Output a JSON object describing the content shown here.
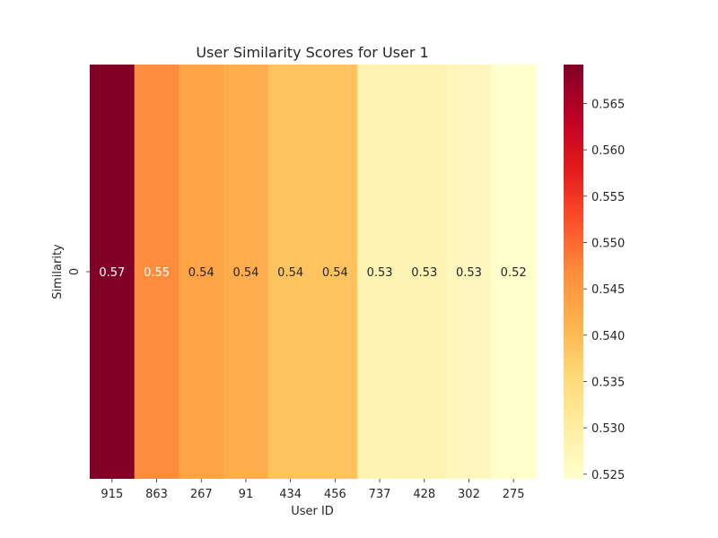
{
  "chart_data": {
    "type": "heatmap",
    "title": "User Similarity Scores for User 1",
    "xlabel": "User ID",
    "ylabel": "Similarity",
    "x_categories": [
      "915",
      "863",
      "267",
      "91",
      "434",
      "456",
      "737",
      "428",
      "302",
      "275"
    ],
    "y_categories": [
      "0"
    ],
    "values": [
      [
        0.569,
        0.551,
        0.543,
        0.542,
        0.538,
        0.538,
        0.526,
        0.526,
        0.525,
        0.524
      ]
    ],
    "annotations": [
      "0.57",
      "0.55",
      "0.54",
      "0.54",
      "0.54",
      "0.54",
      "0.53",
      "0.53",
      "0.53",
      "0.52"
    ],
    "colormap": "YlOrRd",
    "colorbar": {
      "min": 0.5245,
      "max": 0.5692,
      "ticks": [
        0.525,
        0.53,
        0.535,
        0.54,
        0.545,
        0.55,
        0.555,
        0.56,
        0.565
      ],
      "tick_labels": [
        "0.525",
        "0.530",
        "0.535",
        "0.540",
        "0.545",
        "0.550",
        "0.555",
        "0.560",
        "0.565"
      ]
    },
    "colors": {
      "915": "#800026",
      "863": "#fd8d3c",
      "267": "#fea446",
      "91": "#fead4e",
      "434": "#fec35f",
      "456": "#fec35f",
      "737": "#fff3b3",
      "428": "#fff3b3",
      "302": "#fff6bd",
      "275": "#ffffcc"
    }
  }
}
